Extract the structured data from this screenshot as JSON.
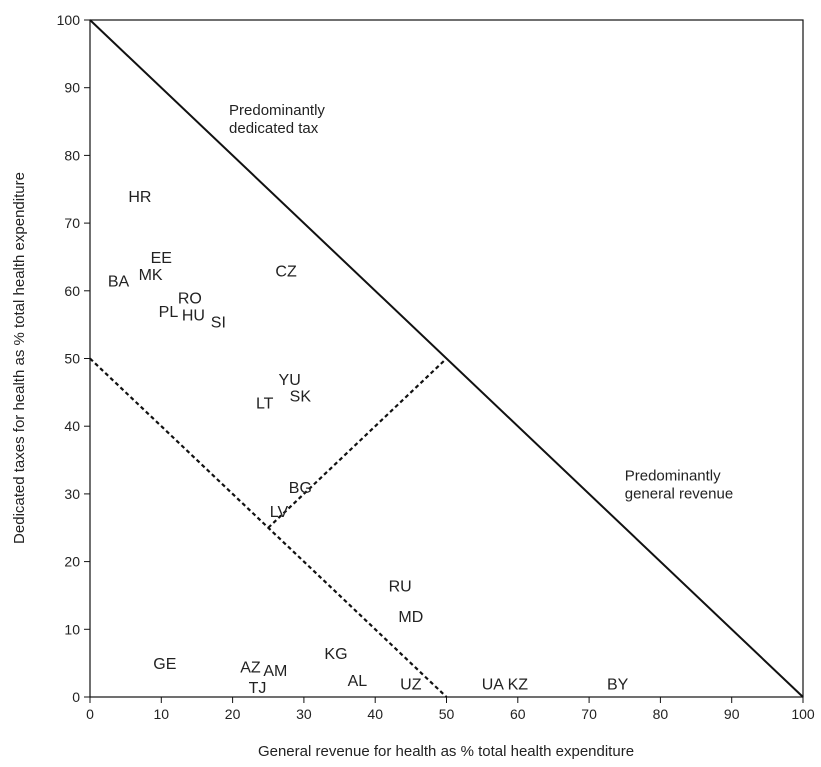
{
  "chart_data": {
    "type": "scatter",
    "xlabel": "General revenue for health as % total health expenditure",
    "ylabel": "Dedicated taxes for health as % total health expenditure",
    "xlim": [
      0,
      100
    ],
    "ylim": [
      0,
      100
    ],
    "x_ticks": [
      "0",
      "10",
      "20",
      "30",
      "40",
      "50",
      "60",
      "70",
      "80",
      "90",
      "100"
    ],
    "y_ticks": [
      "0",
      "10",
      "20",
      "30",
      "40",
      "50",
      "60",
      "70",
      "80",
      "90",
      "100"
    ],
    "grid": false,
    "points": [
      {
        "label": "HR",
        "x": 7,
        "y": 74
      },
      {
        "label": "EE",
        "x": 10,
        "y": 65
      },
      {
        "label": "MK",
        "x": 8.5,
        "y": 62.5
      },
      {
        "label": "BA",
        "x": 4,
        "y": 61.5
      },
      {
        "label": "CZ",
        "x": 27.5,
        "y": 63
      },
      {
        "label": "RO",
        "x": 14,
        "y": 59
      },
      {
        "label": "PL",
        "x": 11,
        "y": 57
      },
      {
        "label": "HU",
        "x": 14.5,
        "y": 56.5
      },
      {
        "label": "SI",
        "x": 18,
        "y": 55.5
      },
      {
        "label": "YU",
        "x": 28,
        "y": 47
      },
      {
        "label": "SK",
        "x": 29.5,
        "y": 44.5
      },
      {
        "label": "LT",
        "x": 24.5,
        "y": 43.5
      },
      {
        "label": "BG",
        "x": 29.5,
        "y": 31
      },
      {
        "label": "LV",
        "x": 26.5,
        "y": 27.5
      },
      {
        "label": "RU",
        "x": 43.5,
        "y": 16.5
      },
      {
        "label": "MD",
        "x": 45,
        "y": 12
      },
      {
        "label": "KG",
        "x": 34.5,
        "y": 6.5
      },
      {
        "label": "GE",
        "x": 10.5,
        "y": 5
      },
      {
        "label": "AZ",
        "x": 22.5,
        "y": 4.5
      },
      {
        "label": "AM",
        "x": 26,
        "y": 4
      },
      {
        "label": "AL",
        "x": 37.5,
        "y": 2.5
      },
      {
        "label": "TJ",
        "x": 23.5,
        "y": 1.5
      },
      {
        "label": "UZ",
        "x": 45,
        "y": 2
      },
      {
        "label": "UA",
        "x": 56.5,
        "y": 2
      },
      {
        "label": "KZ",
        "x": 60,
        "y": 2
      },
      {
        "label": "BY",
        "x": 74,
        "y": 2
      }
    ],
    "reference_lines": [
      {
        "style": "solid",
        "from": [
          0,
          100
        ],
        "to": [
          100,
          0
        ]
      },
      {
        "style": "dashed",
        "from": [
          0,
          50
        ],
        "to": [
          50,
          0
        ]
      },
      {
        "style": "dashed",
        "from": [
          25,
          25
        ],
        "to": [
          50,
          50
        ]
      }
    ],
    "annotations": [
      {
        "lines": [
          "Predominantly",
          "dedicated tax"
        ],
        "x": 19.5,
        "y": 86
      },
      {
        "lines": [
          "Predominantly",
          "general revenue"
        ],
        "x": 75,
        "y": 32
      }
    ]
  }
}
